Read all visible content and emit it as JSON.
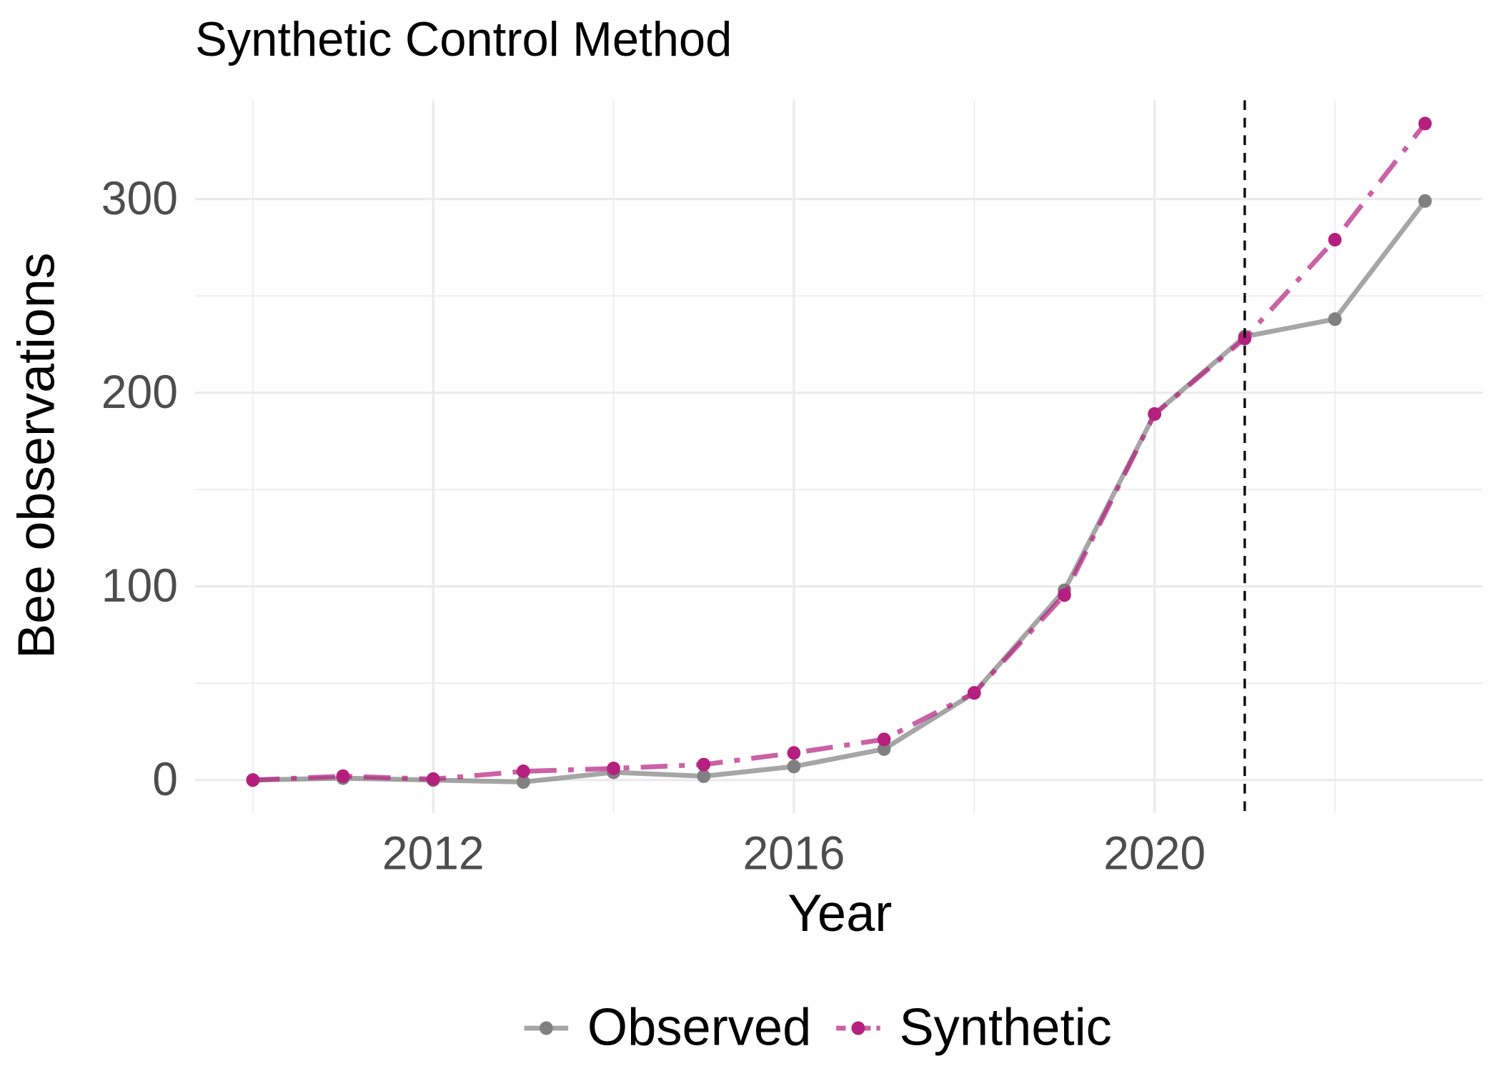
{
  "chart_data": {
    "type": "line",
    "title": "Synthetic Control Method",
    "x_label": "Year",
    "y_label": "Bee observations",
    "x": [
      2010,
      2011,
      2012,
      2013,
      2014,
      2015,
      2016,
      2017,
      2018,
      2019,
      2020,
      2021,
      2022,
      2023
    ],
    "series": [
      {
        "name": "Observed",
        "color": "#808080",
        "dash": "solid",
        "values": [
          0,
          1,
          0,
          -1,
          4,
          2,
          7,
          16,
          45,
          98,
          189,
          229,
          238,
          299
        ]
      },
      {
        "name": "Synthetic",
        "color": "#b5207f",
        "dash": "dashdot",
        "values": [
          0,
          2,
          0.5,
          4.5,
          6,
          8,
          14,
          21,
          45,
          95.5,
          189,
          228,
          279,
          339
        ]
      }
    ],
    "xlim": [
      2009.36,
      2023.64
    ],
    "ylim": [
      -17,
      351
    ],
    "xticks": [
      2012,
      2016,
      2020
    ],
    "yticks": [
      0,
      100,
      200,
      300
    ],
    "x_minor_grid": [
      2010,
      2014,
      2018,
      2022
    ],
    "y_minor_grid": [
      50,
      150,
      250
    ],
    "vline": 2021,
    "grid": true,
    "legend": "bottom"
  }
}
